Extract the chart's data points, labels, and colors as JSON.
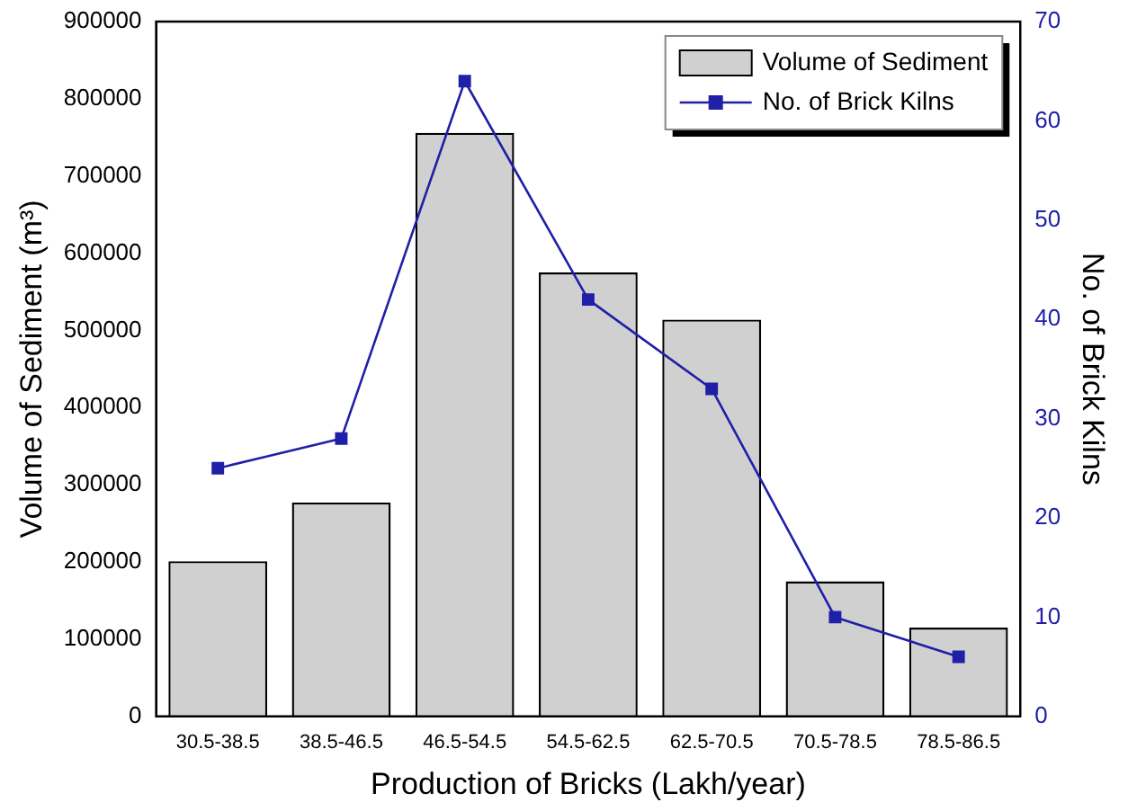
{
  "chart_data": {
    "type": "bar",
    "xlabel": "Production of Bricks (Lakh/year)",
    "ylabel": "Volume of Sediment (m³)",
    "y2label": "No. of Brick Kilns",
    "categories": [
      "30.5-38.5",
      "38.5-46.5",
      "46.5-54.5",
      "54.5-62.5",
      "62.5-70.5",
      "70.5-78.5",
      "78.5-86.5"
    ],
    "series": [
      {
        "name": "Volume of Sediment",
        "color": "#d0d0d0",
        "values": [
          201000,
          277000,
          756000,
          575000,
          514000,
          175000,
          115000
        ]
      },
      {
        "name": "No. of Brick Kilns",
        "type": "line",
        "axis": "y2",
        "color": "#1f1fa8",
        "values": [
          25,
          28,
          64,
          42,
          33,
          10,
          6
        ]
      }
    ],
    "ylim": [
      0,
      900000
    ],
    "yticks": [
      0,
      100000,
      200000,
      300000,
      400000,
      500000,
      600000,
      700000,
      800000,
      900000
    ],
    "y2lim": [
      0,
      70
    ],
    "y2ticks": [
      0,
      10,
      20,
      30,
      40,
      50,
      60,
      70
    ],
    "grid": false,
    "legend": "top right",
    "marker": "square",
    "line_style": "solid"
  }
}
